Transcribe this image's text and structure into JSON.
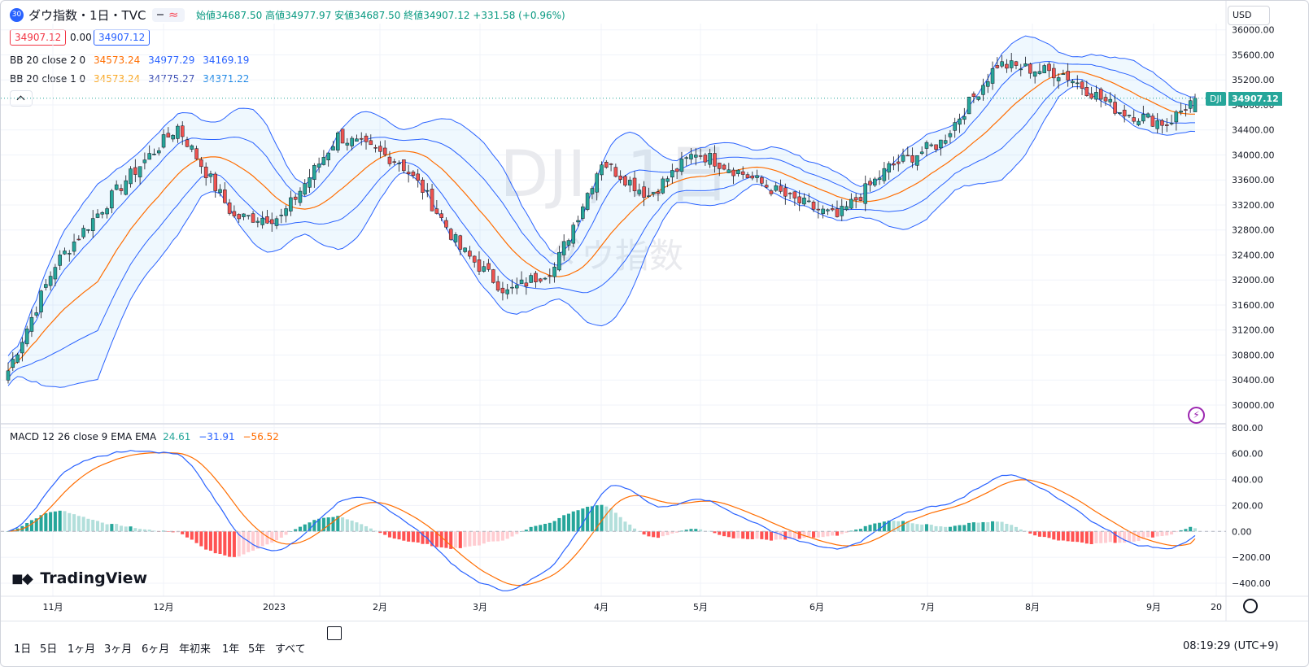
{
  "header": {
    "symbol_badge": "30",
    "title": "ダウ指数・1日・TVC",
    "ohlc": "始値34687.50  高値34977.97  安値34687.50  終値34907.12  +331.58 (+0.96%)",
    "currency": "USD",
    "value_red": "34907.12",
    "value_zero": "0.00",
    "value_blue": "34907.12",
    "bb2_label": "BB 20 close 2 0",
    "bb2_mid": "34573.24",
    "bb2_up": "34977.29",
    "bb2_low": "34169.19",
    "bb1_label": "BB 20 close 1 0",
    "bb1_mid": "34573.24",
    "bb1_up": "34775.27",
    "bb1_low": "34371.22"
  },
  "macd_header": {
    "label": "MACD 12 26 close 9 EMA EMA",
    "hist": "24.61",
    "macd": "−31.91",
    "signal": "−56.52"
  },
  "watermark": {
    "ticker": "DJI, 1日",
    "name": "ダウ指数"
  },
  "logo": "TradingView",
  "price_tag": {
    "symbol": "DJI",
    "value": "34907.12"
  },
  "timeframes": [
    "1日",
    "5日",
    "1ヶ月",
    "3ヶ月",
    "6ヶ月",
    "年初来",
    "1年",
    "5年",
    "すべて"
  ],
  "clock": "08:19:29 (UTC+9)",
  "colors": {
    "up": "#26a69a",
    "down": "#ef5350",
    "bb_outer": "#2962ff",
    "bb_inner": "#2962ff",
    "basis": "#ff6d00",
    "macd": "#2962ff",
    "signal": "#ff6d00"
  },
  "chart_data": [
    {
      "type": "candlestick",
      "series_names": [
        "BB 20 close 2 0",
        "BB 20 close 1 0"
      ],
      "y_ticks": [
        "36000.00",
        "35600.00",
        "35200.00",
        "34800.00",
        "34400.00",
        "34000.00",
        "33600.00",
        "33200.00",
        "32800.00",
        "32400.00",
        "32000.00",
        "31600.00",
        "31200.00",
        "30800.00",
        "30400.00",
        "30000.00"
      ],
      "ylim": [
        29700,
        36100
      ],
      "x_ticks": [
        "11月",
        "12月",
        "2023",
        "2月",
        "3月",
        "4月",
        "5月",
        "6月",
        "7月",
        "8月",
        "9月",
        "20"
      ],
      "close_anchors": [
        [
          0,
          30550
        ],
        [
          10,
          32250
        ],
        [
          25,
          33600
        ],
        [
          36,
          34450
        ],
        [
          48,
          33000
        ],
        [
          58,
          33000
        ],
        [
          70,
          34300
        ],
        [
          83,
          33900
        ],
        [
          88,
          33450
        ],
        [
          96,
          32500
        ],
        [
          106,
          31800
        ],
        [
          116,
          32200
        ],
        [
          126,
          33900
        ],
        [
          136,
          33350
        ],
        [
          146,
          34050
        ],
        [
          156,
          33700
        ],
        [
          166,
          33300
        ],
        [
          176,
          33000
        ],
        [
          187,
          33800
        ],
        [
          198,
          34200
        ],
        [
          210,
          35450
        ],
        [
          224,
          35300
        ],
        [
          236,
          34700
        ],
        [
          246,
          34500
        ],
        [
          252,
          34907
        ]
      ],
      "bollinger": {
        "period": 20,
        "outer_k": 2,
        "inner_k": 1,
        "last": {
          "basis": 34573.24,
          "upper2": 34977.29,
          "lower2": 34169.19,
          "upper1": 34775.27,
          "lower1": 34371.22
        }
      }
    },
    {
      "type": "macd",
      "y_ticks": [
        "800.00",
        "600.00",
        "400.00",
        "200.00",
        "0.00",
        "−200.00",
        "−400.00"
      ],
      "ylim": [
        -500,
        830
      ],
      "params": {
        "fast": 12,
        "slow": 26,
        "signal": 9
      },
      "last": {
        "histogram": 24.61,
        "macd": -31.91,
        "signal": -56.52
      }
    }
  ]
}
